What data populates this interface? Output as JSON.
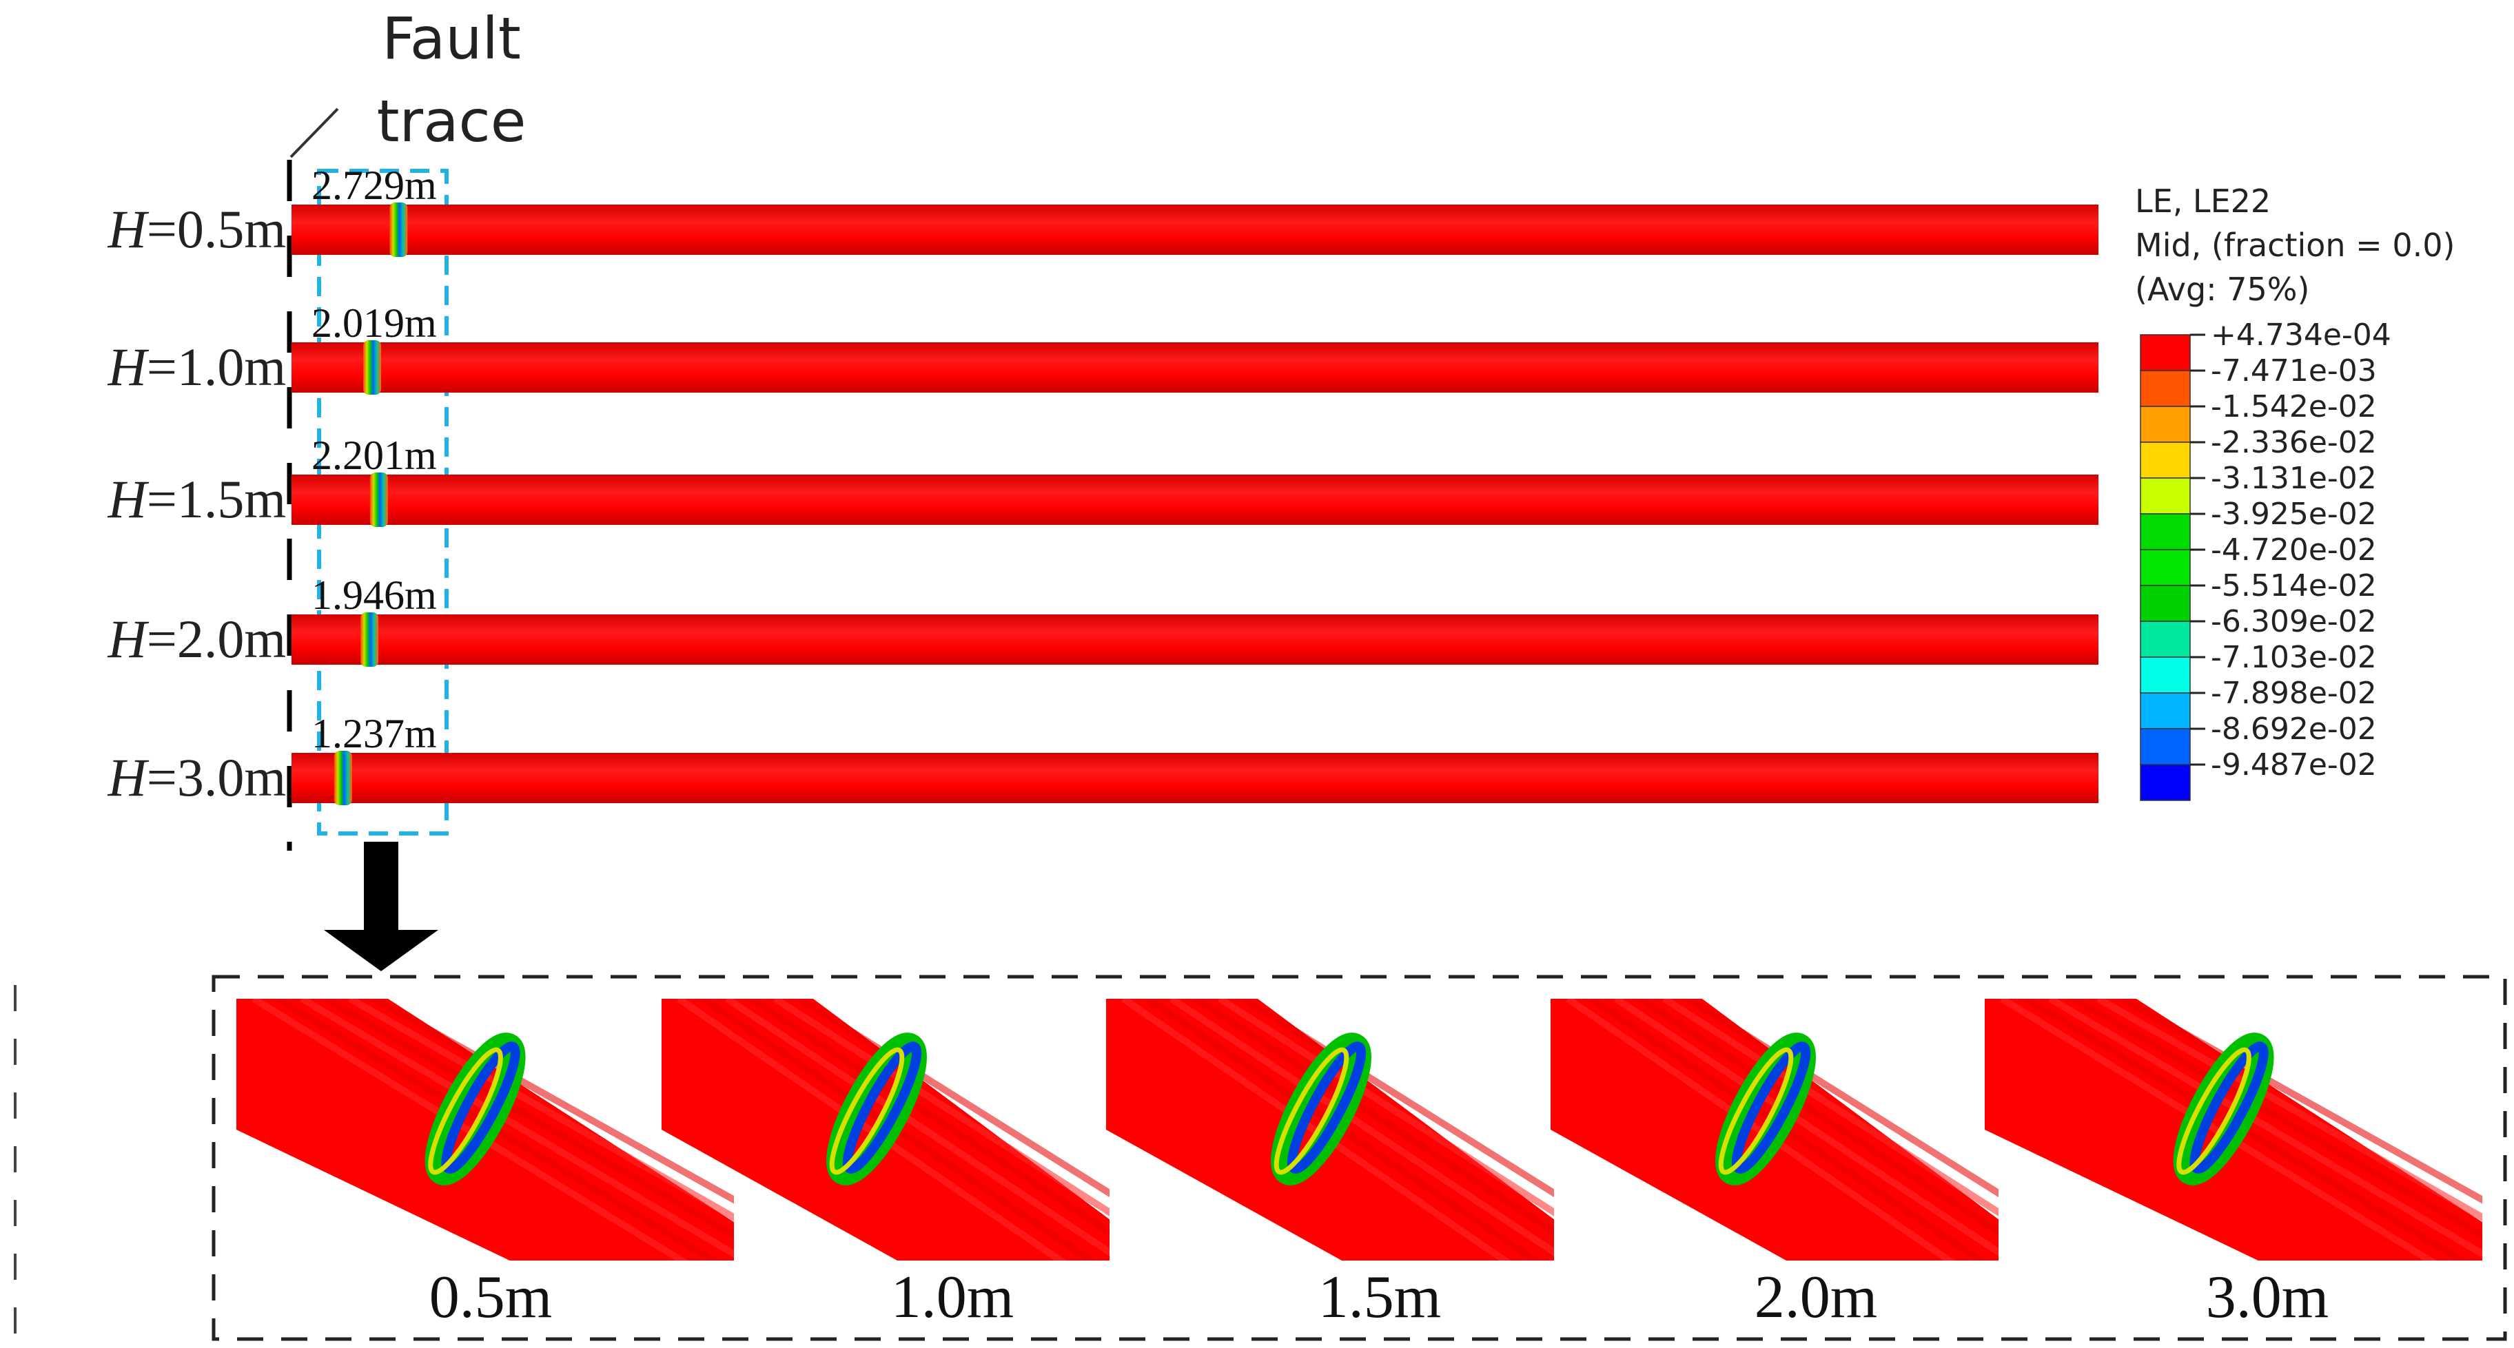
{
  "fault_trace": {
    "line1": "Fault",
    "line2": "trace"
  },
  "pipes": [
    {
      "h_prefix": "H",
      "h_value": "=0.5m",
      "buckle_label": "2.729m",
      "buckle_offset_m": 2.729
    },
    {
      "h_prefix": "H",
      "h_value": "=1.0m",
      "buckle_label": "2.019m",
      "buckle_offset_m": 2.019
    },
    {
      "h_prefix": "H",
      "h_value": "=1.5m",
      "buckle_label": "2.201m",
      "buckle_offset_m": 2.201
    },
    {
      "h_prefix": "H",
      "h_value": "=2.0m",
      "buckle_label": "1.946m",
      "buckle_offset_m": 1.946
    },
    {
      "h_prefix": "H",
      "h_value": "=3.0m",
      "buckle_label": "1.237m",
      "buckle_offset_m": 1.237
    }
  ],
  "legend": {
    "title_line1": "LE, LE22",
    "title_line2": "Mid, (fraction = 0.0)",
    "title_line3": "(Avg: 75%)",
    "values": [
      "+4.734e-04",
      "-7.471e-03",
      "-1.542e-02",
      "-2.336e-02",
      "-3.131e-02",
      "-3.925e-02",
      "-4.720e-02",
      "-5.514e-02",
      "-6.309e-02",
      "-7.103e-02",
      "-7.898e-02",
      "-8.692e-02",
      "-9.487e-02"
    ],
    "colors": [
      "#ff0000",
      "#ff5400",
      "#ffa000",
      "#ffd600",
      "#c8ff00",
      "#00dc00",
      "#00e600",
      "#00d200",
      "#00e8a0",
      "#00ffe6",
      "#00b4ff",
      "#0064ff",
      "#0000ff"
    ]
  },
  "detail_labels": [
    "0.5m",
    "1.0m",
    "1.5m",
    "2.0m",
    "3.0m"
  ],
  "colors": {
    "pipe": "#ff0000",
    "pipe_shade": "#e00000",
    "highlight_box": "#1fb3e8",
    "arrow": "#000000"
  }
}
